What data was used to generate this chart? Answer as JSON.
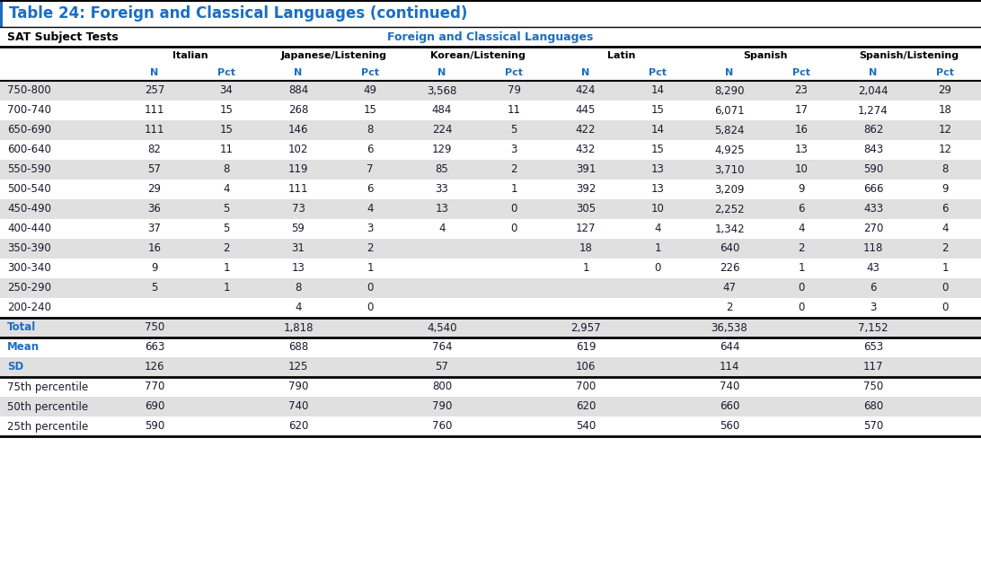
{
  "title": "Table 24: Foreign and Classical Languages (continued)",
  "subtitle_left": "SAT Subject Tests",
  "subtitle_right": "Foreign and Classical Languages",
  "col_groups": [
    "Italian",
    "Japanese/Listening",
    "Korean/Listening",
    "Latin",
    "Spanish",
    "Spanish/Listening"
  ],
  "score_rows": [
    [
      "750-800",
      "257",
      "34",
      "884",
      "49",
      "3,568",
      "79",
      "424",
      "14",
      "8,290",
      "23",
      "2,044",
      "29"
    ],
    [
      "700-740",
      "111",
      "15",
      "268",
      "15",
      "484",
      "11",
      "445",
      "15",
      "6,071",
      "17",
      "1,274",
      "18"
    ],
    [
      "650-690",
      "111",
      "15",
      "146",
      "8",
      "224",
      "5",
      "422",
      "14",
      "5,824",
      "16",
      "862",
      "12"
    ],
    [
      "600-640",
      "82",
      "11",
      "102",
      "6",
      "129",
      "3",
      "432",
      "15",
      "4,925",
      "13",
      "843",
      "12"
    ],
    [
      "550-590",
      "57",
      "8",
      "119",
      "7",
      "85",
      "2",
      "391",
      "13",
      "3,710",
      "10",
      "590",
      "8"
    ],
    [
      "500-540",
      "29",
      "4",
      "111",
      "6",
      "33",
      "1",
      "392",
      "13",
      "3,209",
      "9",
      "666",
      "9"
    ],
    [
      "450-490",
      "36",
      "5",
      "73",
      "4",
      "13",
      "0",
      "305",
      "10",
      "2,252",
      "6",
      "433",
      "6"
    ],
    [
      "400-440",
      "37",
      "5",
      "59",
      "3",
      "4",
      "0",
      "127",
      "4",
      "1,342",
      "4",
      "270",
      "4"
    ],
    [
      "350-390",
      "16",
      "2",
      "31",
      "2",
      "",
      "",
      "18",
      "1",
      "640",
      "2",
      "118",
      "2"
    ],
    [
      "300-340",
      "9",
      "1",
      "13",
      "1",
      "",
      "",
      "1",
      "0",
      "226",
      "1",
      "43",
      "1"
    ],
    [
      "250-290",
      "5",
      "1",
      "8",
      "0",
      "",
      "",
      "",
      "",
      "47",
      "0",
      "6",
      "0"
    ],
    [
      "200-240",
      "",
      "",
      "4",
      "0",
      "",
      "",
      "",
      "",
      "2",
      "0",
      "3",
      "0"
    ]
  ],
  "total_row": [
    "Total",
    "750",
    "",
    "1,818",
    "",
    "4,540",
    "",
    "2,957",
    "",
    "36,538",
    "",
    "7,152",
    ""
  ],
  "mean_row": [
    "Mean",
    "663",
    "",
    "688",
    "",
    "764",
    "",
    "619",
    "",
    "644",
    "",
    "653",
    ""
  ],
  "sd_row": [
    "SD",
    "126",
    "",
    "125",
    "",
    "57",
    "",
    "106",
    "",
    "114",
    "",
    "117",
    ""
  ],
  "p75_row": [
    "75th percentile",
    "770",
    "",
    "790",
    "",
    "800",
    "",
    "700",
    "",
    "740",
    "",
    "750",
    ""
  ],
  "p50_row": [
    "50th percentile",
    "690",
    "",
    "740",
    "",
    "790",
    "",
    "620",
    "",
    "660",
    "",
    "680",
    ""
  ],
  "p25_row": [
    "25th percentile",
    "590",
    "",
    "620",
    "",
    "760",
    "",
    "540",
    "",
    "560",
    "",
    "570",
    ""
  ],
  "title_color": "#1B6EC2",
  "header_color": "#1B6EC2",
  "summary_label_color": "#1B6EC2",
  "data_color": "#1a1a2e",
  "row_label_color": "#1a1a2e",
  "row_bg_odd": "#E0E0E0",
  "row_bg_even": "#FFFFFF",
  "header_bg": "#FFFFFF",
  "total_bg": "#E0E0E0",
  "mean_bg": "#FFFFFF",
  "sd_bg": "#E0E0E0",
  "p75_bg": "#FFFFFF",
  "p50_bg": "#E0E0E0",
  "p25_bg": "#FFFFFF",
  "border_color": "#000000",
  "thick_border": 1.5,
  "thin_border": 0.5
}
